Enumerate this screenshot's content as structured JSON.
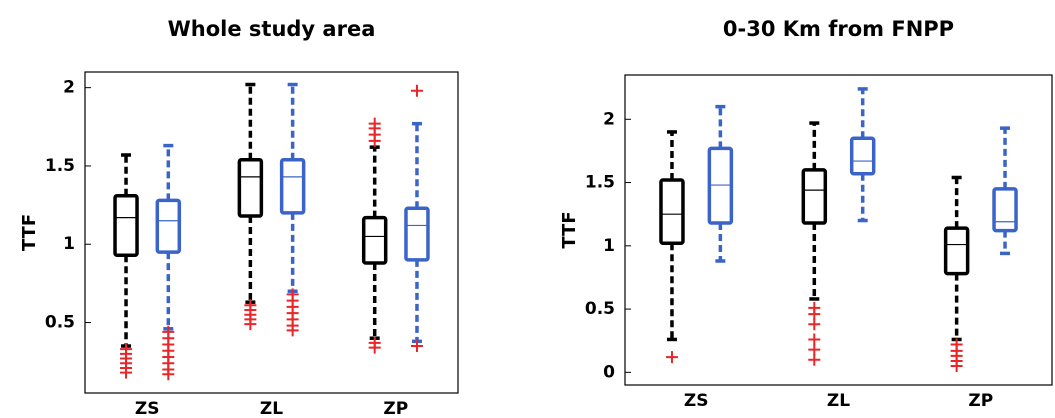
{
  "chart_data": [
    {
      "type": "box",
      "title": "Whole study area",
      "ylabel": "TTF",
      "categories": [
        "ZS",
        "ZL",
        "ZP"
      ],
      "ylim": [
        0.05,
        2.1
      ],
      "yticks": [
        0.5,
        1,
        1.5,
        2
      ],
      "outlier_color": "#e8262a",
      "series": [
        {
          "color": "#000000",
          "values": [
            {
              "min": 0.35,
              "q1": 0.93,
              "median": 1.17,
              "q3": 1.31,
              "max": 1.57,
              "outliers": [
                0.33,
                0.3,
                0.27,
                0.24,
                0.21,
                0.18
              ]
            },
            {
              "min": 0.63,
              "q1": 1.18,
              "median": 1.43,
              "q3": 1.54,
              "max": 2.02,
              "outliers": [
                0.61,
                0.58,
                0.55,
                0.52,
                0.49
              ]
            },
            {
              "min": 0.4,
              "q1": 0.88,
              "median": 1.05,
              "q3": 1.17,
              "max": 1.62,
              "outliers": [
                1.66,
                1.7,
                1.74,
                1.77,
                0.37,
                0.34
              ]
            }
          ]
        },
        {
          "color": "#3a64c8",
          "values": [
            {
              "min": 0.46,
              "q1": 0.95,
              "median": 1.15,
              "q3": 1.28,
              "max": 1.63,
              "outliers": [
                0.44,
                0.4,
                0.36,
                0.32,
                0.28,
                0.24,
                0.2,
                0.17
              ]
            },
            {
              "min": 0.7,
              "q1": 1.2,
              "median": 1.43,
              "q3": 1.54,
              "max": 2.02,
              "outliers": [
                0.68,
                0.64,
                0.6,
                0.56,
                0.52,
                0.48,
                0.45
              ]
            },
            {
              "min": 0.38,
              "q1": 0.9,
              "median": 1.12,
              "q3": 1.23,
              "max": 1.77,
              "outliers": [
                1.98,
                0.35
              ]
            }
          ]
        }
      ]
    },
    {
      "type": "box",
      "title": "0-30 Km from FNPP",
      "ylabel": "TTF",
      "categories": [
        "ZS",
        "ZL",
        "ZP"
      ],
      "ylim": [
        -0.1,
        2.35
      ],
      "yticks": [
        0,
        0.5,
        1,
        1.5,
        2
      ],
      "outlier_color": "#e8262a",
      "series": [
        {
          "color": "#000000",
          "values": [
            {
              "min": 0.26,
              "q1": 1.02,
              "median": 1.25,
              "q3": 1.52,
              "max": 1.9,
              "outliers": [
                0.12
              ]
            },
            {
              "min": 0.58,
              "q1": 1.18,
              "median": 1.44,
              "q3": 1.6,
              "max": 1.97,
              "outliers": [
                0.51,
                0.46,
                0.38,
                0.26,
                0.18,
                0.1
              ]
            },
            {
              "min": 0.26,
              "q1": 0.78,
              "median": 1.01,
              "q3": 1.14,
              "max": 1.54,
              "outliers": [
                0.22,
                0.17,
                0.13,
                0.09,
                0.05
              ]
            }
          ]
        },
        {
          "color": "#3a64c8",
          "values": [
            {
              "min": 0.88,
              "q1": 1.18,
              "median": 1.48,
              "q3": 1.77,
              "max": 2.1,
              "outliers": []
            },
            {
              "min": 1.2,
              "q1": 1.57,
              "median": 1.67,
              "q3": 1.85,
              "max": 2.24,
              "outliers": []
            },
            {
              "min": 0.94,
              "q1": 1.12,
              "median": 1.19,
              "q3": 1.45,
              "max": 1.93,
              "outliers": []
            }
          ]
        }
      ]
    }
  ]
}
